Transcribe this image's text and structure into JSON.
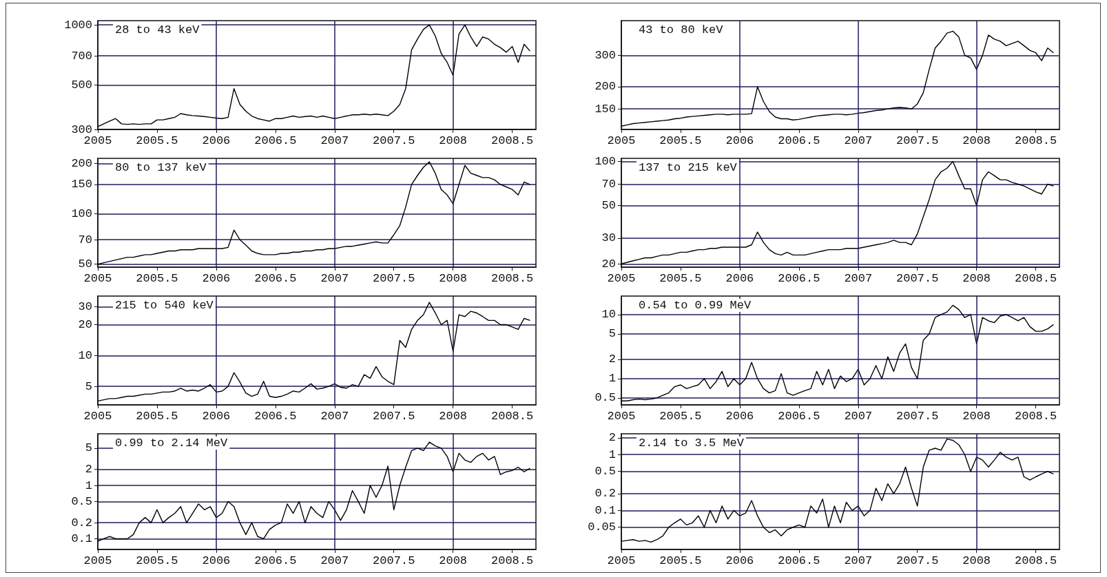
{
  "chart_data": [
    {
      "type": "line",
      "title": "28 to 43 keV",
      "log": "y",
      "grid": "y",
      "marker": "none",
      "line_style": "solid",
      "xlim": [
        2005,
        2008.7
      ],
      "xticks": [
        2005,
        2005.5,
        2006,
        2006.5,
        2007,
        2007.5,
        2008,
        2008.5
      ],
      "ylim": [
        300,
        1050
      ],
      "yticks": [
        300,
        500,
        700,
        1000
      ],
      "ref_lines": [
        {
          "axis": "x",
          "value": 2006,
          "color": "#1c1c5c"
        },
        {
          "axis": "x",
          "value": 2007,
          "color": "#1c1c5c"
        },
        {
          "axis": "x",
          "value": 2008,
          "color": "#1c1c5c"
        }
      ],
      "x": [
        2005,
        2005.05,
        2005.1,
        2005.15,
        2005.2,
        2005.25,
        2005.3,
        2005.35,
        2005.4,
        2005.45,
        2005.5,
        2005.55,
        2005.6,
        2005.65,
        2005.7,
        2005.75,
        2005.8,
        2005.85,
        2005.9,
        2005.95,
        2006,
        2006.05,
        2006.1,
        2006.15,
        2006.2,
        2006.25,
        2006.3,
        2006.35,
        2006.4,
        2006.45,
        2006.5,
        2006.55,
        2006.6,
        2006.65,
        2006.7,
        2006.75,
        2006.8,
        2006.85,
        2006.9,
        2006.95,
        2007,
        2007.05,
        2007.1,
        2007.15,
        2007.2,
        2007.25,
        2007.3,
        2007.35,
        2007.4,
        2007.45,
        2007.5,
        2007.55,
        2007.6,
        2007.65,
        2007.7,
        2007.75,
        2007.8,
        2007.85,
        2007.9,
        2007.95,
        2008,
        2008.05,
        2008.1,
        2008.15,
        2008.2,
        2008.25,
        2008.3,
        2008.35,
        2008.4,
        2008.45,
        2008.5,
        2008.55,
        2008.6,
        2008.65
      ],
      "series": [
        {
          "color": "#000000",
          "values": [
            310,
            320,
            330,
            340,
            320,
            318,
            320,
            318,
            320,
            320,
            335,
            335,
            340,
            345,
            360,
            355,
            352,
            350,
            348,
            345,
            342,
            340,
            345,
            480,
            400,
            370,
            350,
            340,
            335,
            330,
            340,
            340,
            345,
            350,
            345,
            348,
            350,
            345,
            350,
            345,
            340,
            345,
            350,
            355,
            355,
            358,
            355,
            358,
            355,
            352,
            370,
            400,
            480,
            750,
            850,
            950,
            1000,
            880,
            720,
            650,
            560,
            900,
            1000,
            870,
            780,
            870,
            850,
            800,
            770,
            730,
            780,
            650,
            800,
            740
          ]
        }
      ]
    },
    {
      "type": "line",
      "title": "43 to 80 keV",
      "log": "y",
      "grid": "y",
      "marker": "none",
      "line_style": "solid",
      "xlim": [
        2005,
        2008.7
      ],
      "xticks": [
        2005,
        2005.5,
        2006,
        2006.5,
        2007,
        2007.5,
        2008,
        2008.5
      ],
      "ylim": [
        115,
        470
      ],
      "yticks": [
        150,
        200,
        300
      ],
      "ref_lines": [
        {
          "axis": "x",
          "value": 2006,
          "color": "#1c1c5c"
        },
        {
          "axis": "x",
          "value": 2007,
          "color": "#1c1c5c"
        },
        {
          "axis": "x",
          "value": 2008,
          "color": "#1c1c5c"
        }
      ],
      "x": [
        2005,
        2005.05,
        2005.1,
        2005.15,
        2005.2,
        2005.25,
        2005.3,
        2005.35,
        2005.4,
        2005.45,
        2005.5,
        2005.55,
        2005.6,
        2005.65,
        2005.7,
        2005.75,
        2005.8,
        2005.85,
        2005.9,
        2005.95,
        2006,
        2006.05,
        2006.1,
        2006.15,
        2006.2,
        2006.25,
        2006.3,
        2006.35,
        2006.4,
        2006.45,
        2006.5,
        2006.55,
        2006.6,
        2006.65,
        2006.7,
        2006.75,
        2006.8,
        2006.85,
        2006.9,
        2006.95,
        2007,
        2007.05,
        2007.1,
        2007.15,
        2007.2,
        2007.25,
        2007.3,
        2007.35,
        2007.4,
        2007.45,
        2007.5,
        2007.55,
        2007.6,
        2007.65,
        2007.7,
        2007.75,
        2007.8,
        2007.85,
        2007.9,
        2007.95,
        2008,
        2008.05,
        2008.1,
        2008.15,
        2008.2,
        2008.25,
        2008.3,
        2008.35,
        2008.4,
        2008.45,
        2008.5,
        2008.55,
        2008.6,
        2008.65
      ],
      "series": [
        {
          "color": "#000000",
          "values": [
            120,
            122,
            124,
            125,
            126,
            127,
            128,
            129,
            130,
            132,
            133,
            135,
            136,
            137,
            138,
            139,
            140,
            140,
            139,
            140,
            140,
            140,
            141,
            200,
            165,
            145,
            135,
            132,
            132,
            130,
            131,
            133,
            135,
            137,
            138,
            139,
            140,
            140,
            139,
            140,
            142,
            143,
            145,
            147,
            148,
            150,
            152,
            153,
            152,
            150,
            160,
            185,
            250,
            330,
            360,
            400,
            410,
            380,
            300,
            290,
            250,
            300,
            390,
            370,
            360,
            340,
            350,
            360,
            340,
            320,
            310,
            280,
            330,
            310
          ]
        }
      ]
    },
    {
      "type": "line",
      "title": "80 to 137 keV",
      "log": "y",
      "grid": "y",
      "marker": "none",
      "line_style": "solid",
      "xlim": [
        2005,
        2008.7
      ],
      "xticks": [
        2005,
        2005.5,
        2006,
        2006.5,
        2007,
        2007.5,
        2008,
        2008.5
      ],
      "ylim": [
        48,
        215
      ],
      "yticks": [
        50,
        70,
        100,
        150,
        200
      ],
      "ref_lines": [
        {
          "axis": "x",
          "value": 2006,
          "color": "#1c1c5c"
        },
        {
          "axis": "x",
          "value": 2007,
          "color": "#1c1c5c"
        },
        {
          "axis": "x",
          "value": 2008,
          "color": "#1c1c5c"
        }
      ],
      "x": [
        2005,
        2005.05,
        2005.1,
        2005.15,
        2005.2,
        2005.25,
        2005.3,
        2005.35,
        2005.4,
        2005.45,
        2005.5,
        2005.55,
        2005.6,
        2005.65,
        2005.7,
        2005.75,
        2005.8,
        2005.85,
        2005.9,
        2005.95,
        2006,
        2006.05,
        2006.1,
        2006.15,
        2006.2,
        2006.25,
        2006.3,
        2006.35,
        2006.4,
        2006.45,
        2006.5,
        2006.55,
        2006.6,
        2006.65,
        2006.7,
        2006.75,
        2006.8,
        2006.85,
        2006.9,
        2006.95,
        2007,
        2007.05,
        2007.1,
        2007.15,
        2007.2,
        2007.25,
        2007.3,
        2007.35,
        2007.4,
        2007.45,
        2007.5,
        2007.55,
        2007.6,
        2007.65,
        2007.7,
        2007.75,
        2007.8,
        2007.85,
        2007.9,
        2007.95,
        2008,
        2008.05,
        2008.1,
        2008.15,
        2008.2,
        2008.25,
        2008.3,
        2008.35,
        2008.4,
        2008.45,
        2008.5,
        2008.55,
        2008.6,
        2008.65
      ],
      "series": [
        {
          "color": "#000000",
          "values": [
            50,
            51,
            52,
            53,
            54,
            55,
            55,
            56,
            57,
            57,
            58,
            59,
            60,
            60,
            61,
            61,
            61,
            62,
            62,
            62,
            62,
            62,
            63,
            80,
            70,
            65,
            60,
            58,
            57,
            57,
            57,
            58,
            58,
            59,
            59,
            60,
            60,
            61,
            61,
            62,
            62,
            63,
            64,
            64,
            65,
            66,
            67,
            68,
            67,
            67,
            75,
            85,
            110,
            150,
            170,
            190,
            205,
            175,
            140,
            130,
            115,
            150,
            195,
            175,
            170,
            165,
            165,
            160,
            150,
            145,
            140,
            130,
            155,
            150
          ]
        }
      ]
    },
    {
      "type": "line",
      "title": "137 to 215 keV",
      "log": "y",
      "grid": "y",
      "marker": "none",
      "line_style": "solid",
      "xlim": [
        2005,
        2008.7
      ],
      "xticks": [
        2005,
        2005.5,
        2006,
        2006.5,
        2007,
        2007.5,
        2008,
        2008.5
      ],
      "ylim": [
        19,
        105
      ],
      "yticks": [
        20,
        30,
        50,
        70,
        100
      ],
      "ref_lines": [
        {
          "axis": "x",
          "value": 2006,
          "color": "#1c1c5c"
        },
        {
          "axis": "x",
          "value": 2007,
          "color": "#1c1c5c"
        },
        {
          "axis": "x",
          "value": 2008,
          "color": "#1c1c5c"
        }
      ],
      "x": [
        2005,
        2005.05,
        2005.1,
        2005.15,
        2005.2,
        2005.25,
        2005.3,
        2005.35,
        2005.4,
        2005.45,
        2005.5,
        2005.55,
        2005.6,
        2005.65,
        2005.7,
        2005.75,
        2005.8,
        2005.85,
        2005.9,
        2005.95,
        2006,
        2006.05,
        2006.1,
        2006.15,
        2006.2,
        2006.25,
        2006.3,
        2006.35,
        2006.4,
        2006.45,
        2006.5,
        2006.55,
        2006.6,
        2006.65,
        2006.7,
        2006.75,
        2006.8,
        2006.85,
        2006.9,
        2006.95,
        2007,
        2007.05,
        2007.1,
        2007.15,
        2007.2,
        2007.25,
        2007.3,
        2007.35,
        2007.4,
        2007.45,
        2007.5,
        2007.55,
        2007.6,
        2007.65,
        2007.7,
        2007.75,
        2007.8,
        2007.85,
        2007.9,
        2007.95,
        2008,
        2008.05,
        2008.1,
        2008.15,
        2008.2,
        2008.25,
        2008.3,
        2008.35,
        2008.4,
        2008.45,
        2008.5,
        2008.55,
        2008.6,
        2008.65
      ],
      "series": [
        {
          "color": "#000000",
          "values": [
            20,
            20.5,
            21,
            21.5,
            22,
            22,
            22.5,
            23,
            23,
            23.5,
            24,
            24,
            24.5,
            25,
            25,
            25.5,
            25.5,
            26,
            26,
            26,
            26,
            26,
            27,
            33,
            28,
            25,
            23.5,
            23,
            24,
            23,
            23,
            23,
            23.5,
            24,
            24.5,
            25,
            25,
            25,
            25.5,
            25.5,
            25.5,
            26,
            26.5,
            27,
            27.5,
            28,
            29,
            28,
            28,
            27,
            32,
            42,
            55,
            75,
            85,
            90,
            100,
            80,
            65,
            65,
            50,
            75,
            85,
            80,
            75,
            75,
            72,
            70,
            68,
            65,
            62,
            60,
            70,
            68
          ]
        }
      ]
    },
    {
      "type": "line",
      "title": "215 to 540 keV",
      "log": "y",
      "grid": "y",
      "marker": "none",
      "line_style": "solid",
      "xlim": [
        2005,
        2008.7
      ],
      "xticks": [
        2005,
        2005.5,
        2006,
        2006.5,
        2007,
        2007.5,
        2008,
        2008.5
      ],
      "ylim": [
        3.3,
        38
      ],
      "yticks": [
        5,
        10,
        20,
        30
      ],
      "ref_lines": [
        {
          "axis": "x",
          "value": 2006,
          "color": "#1c1c5c"
        },
        {
          "axis": "x",
          "value": 2007,
          "color": "#1c1c5c"
        },
        {
          "axis": "x",
          "value": 2008,
          "color": "#1c1c5c"
        }
      ],
      "x": [
        2005,
        2005.05,
        2005.1,
        2005.15,
        2005.2,
        2005.25,
        2005.3,
        2005.35,
        2005.4,
        2005.45,
        2005.5,
        2005.55,
        2005.6,
        2005.65,
        2005.7,
        2005.75,
        2005.8,
        2005.85,
        2005.9,
        2005.95,
        2006,
        2006.05,
        2006.1,
        2006.15,
        2006.2,
        2006.25,
        2006.3,
        2006.35,
        2006.4,
        2006.45,
        2006.5,
        2006.55,
        2006.6,
        2006.65,
        2006.7,
        2006.75,
        2006.8,
        2006.85,
        2006.9,
        2006.95,
        2007,
        2007.05,
        2007.1,
        2007.15,
        2007.2,
        2007.25,
        2007.3,
        2007.35,
        2007.4,
        2007.45,
        2007.5,
        2007.55,
        2007.6,
        2007.65,
        2007.7,
        2007.75,
        2007.8,
        2007.85,
        2007.9,
        2007.95,
        2008,
        2008.05,
        2008.1,
        2008.15,
        2008.2,
        2008.25,
        2008.3,
        2008.35,
        2008.4,
        2008.45,
        2008.5,
        2008.55,
        2008.6,
        2008.65
      ],
      "series": [
        {
          "color": "#000000",
          "values": [
            3.6,
            3.7,
            3.8,
            3.8,
            3.9,
            4.0,
            4.0,
            4.1,
            4.2,
            4.2,
            4.3,
            4.4,
            4.4,
            4.5,
            4.8,
            4.5,
            4.6,
            4.5,
            4.8,
            5.2,
            4.4,
            4.5,
            5.0,
            6.8,
            5.5,
            4.3,
            4.0,
            4.2,
            5.6,
            4.0,
            3.9,
            4.0,
            4.2,
            4.5,
            4.4,
            4.8,
            5.3,
            4.7,
            4.8,
            5.0,
            5.3,
            4.9,
            4.8,
            5.2,
            5.0,
            6.5,
            6.0,
            7.8,
            6.2,
            5.6,
            5.2,
            14,
            12,
            18,
            22,
            25,
            33,
            26,
            20,
            22,
            11,
            25,
            24,
            27,
            26,
            24,
            22,
            22,
            20,
            20,
            19,
            18,
            23,
            22
          ]
        }
      ]
    },
    {
      "type": "line",
      "title": "0.54 to 0.99 MeV",
      "log": "y",
      "grid": "y",
      "marker": "none",
      "line_style": "solid",
      "xlim": [
        2005,
        2008.7
      ],
      "xticks": [
        2005,
        2005.5,
        2006,
        2006.5,
        2007,
        2007.5,
        2008,
        2008.5
      ],
      "ylim": [
        0.39,
        19.5
      ],
      "yticks": [
        0.5,
        1,
        2,
        5,
        10
      ],
      "ref_lines": [
        {
          "axis": "x",
          "value": 2006,
          "color": "#1c1c5c"
        },
        {
          "axis": "x",
          "value": 2007,
          "color": "#1c1c5c"
        },
        {
          "axis": "x",
          "value": 2008,
          "color": "#1c1c5c"
        }
      ],
      "x": [
        2005,
        2005.05,
        2005.1,
        2005.15,
        2005.2,
        2005.25,
        2005.3,
        2005.35,
        2005.4,
        2005.45,
        2005.5,
        2005.55,
        2005.6,
        2005.65,
        2005.7,
        2005.75,
        2005.8,
        2005.85,
        2005.9,
        2005.95,
        2006,
        2006.05,
        2006.1,
        2006.15,
        2006.2,
        2006.25,
        2006.3,
        2006.35,
        2006.4,
        2006.45,
        2006.5,
        2006.55,
        2006.6,
        2006.65,
        2006.7,
        2006.75,
        2006.8,
        2006.85,
        2006.9,
        2006.95,
        2007,
        2007.05,
        2007.1,
        2007.15,
        2007.2,
        2007.25,
        2007.3,
        2007.35,
        2007.4,
        2007.45,
        2007.5,
        2007.55,
        2007.6,
        2007.65,
        2007.7,
        2007.75,
        2007.8,
        2007.85,
        2007.9,
        2007.95,
        2008,
        2008.05,
        2008.1,
        2008.15,
        2008.2,
        2008.25,
        2008.3,
        2008.35,
        2008.4,
        2008.45,
        2008.5,
        2008.55,
        2008.6,
        2008.65
      ],
      "series": [
        {
          "color": "#000000",
          "values": [
            0.45,
            0.45,
            0.47,
            0.48,
            0.47,
            0.48,
            0.5,
            0.55,
            0.6,
            0.75,
            0.8,
            0.7,
            0.75,
            0.8,
            1.0,
            0.7,
            0.9,
            1.3,
            0.75,
            1.0,
            0.8,
            1.0,
            1.8,
            1.0,
            0.7,
            0.6,
            0.65,
            1.2,
            0.6,
            0.55,
            0.6,
            0.65,
            0.7,
            1.3,
            0.8,
            1.4,
            0.7,
            1.1,
            0.9,
            1.0,
            1.4,
            0.8,
            1.0,
            1.6,
            1.0,
            2.2,
            1.3,
            2.5,
            3.5,
            1.5,
            1.0,
            4.0,
            5.0,
            9.0,
            10,
            11,
            14,
            12,
            9.0,
            10,
            3.5,
            9.0,
            8.0,
            7.5,
            9.5,
            10,
            9.0,
            8.0,
            9.0,
            6.5,
            5.5,
            5.5,
            6.0,
            7.0
          ]
        }
      ]
    },
    {
      "type": "line",
      "title": "0.99 to 2.14 MeV",
      "log": "y",
      "grid": "y",
      "marker": "none",
      "line_style": "solid",
      "xlim": [
        2005,
        2008.7
      ],
      "xticks": [
        2005,
        2005.5,
        2006,
        2006.5,
        2007,
        2007.5,
        2008,
        2008.5
      ],
      "ylim": [
        0.063,
        9.3
      ],
      "yticks": [
        0.1,
        0.2,
        0.5,
        1,
        2,
        5
      ],
      "ref_lines": [
        {
          "axis": "x",
          "value": 2006,
          "color": "#1c1c5c"
        },
        {
          "axis": "x",
          "value": 2007,
          "color": "#1c1c5c"
        },
        {
          "axis": "x",
          "value": 2008,
          "color": "#1c1c5c"
        }
      ],
      "x": [
        2005,
        2005.05,
        2005.1,
        2005.15,
        2005.2,
        2005.25,
        2005.3,
        2005.35,
        2005.4,
        2005.45,
        2005.5,
        2005.55,
        2005.6,
        2005.65,
        2005.7,
        2005.75,
        2005.8,
        2005.85,
        2005.9,
        2005.95,
        2006,
        2006.05,
        2006.1,
        2006.15,
        2006.2,
        2006.25,
        2006.3,
        2006.35,
        2006.4,
        2006.45,
        2006.5,
        2006.55,
        2006.6,
        2006.65,
        2006.7,
        2006.75,
        2006.8,
        2006.85,
        2006.9,
        2006.95,
        2007,
        2007.05,
        2007.1,
        2007.15,
        2007.2,
        2007.25,
        2007.3,
        2007.35,
        2007.4,
        2007.45,
        2007.5,
        2007.55,
        2007.6,
        2007.65,
        2007.7,
        2007.75,
        2007.8,
        2007.85,
        2007.9,
        2007.95,
        2008,
        2008.05,
        2008.1,
        2008.15,
        2008.2,
        2008.25,
        2008.3,
        2008.35,
        2008.4,
        2008.45,
        2008.5,
        2008.55,
        2008.6,
        2008.65
      ],
      "series": [
        {
          "color": "#000000",
          "values": [
            0.09,
            0.1,
            0.11,
            0.1,
            0.1,
            0.1,
            0.12,
            0.2,
            0.25,
            0.2,
            0.35,
            0.2,
            0.25,
            0.3,
            0.4,
            0.2,
            0.3,
            0.45,
            0.35,
            0.4,
            0.25,
            0.3,
            0.5,
            0.4,
            0.2,
            0.12,
            0.2,
            0.11,
            0.1,
            0.15,
            0.18,
            0.2,
            0.45,
            0.3,
            0.5,
            0.2,
            0.4,
            0.3,
            0.25,
            0.5,
            0.35,
            0.22,
            0.35,
            0.8,
            0.5,
            0.3,
            1.0,
            0.6,
            1.0,
            2.3,
            0.35,
            1.0,
            2.2,
            4.5,
            5.0,
            4.5,
            6.5,
            5.5,
            5.0,
            3.5,
            1.8,
            4.0,
            3.0,
            2.7,
            3.5,
            4.0,
            3.0,
            3.5,
            1.6,
            1.8,
            1.9,
            2.2,
            1.8,
            2.1
          ]
        }
      ]
    },
    {
      "type": "line",
      "title": "2.14 to 3.5 MeV",
      "log": "y",
      "grid": "y",
      "marker": "none",
      "line_style": "solid",
      "xlim": [
        2005,
        2008.7
      ],
      "xticks": [
        2005,
        2005.5,
        2006,
        2006.5,
        2007,
        2007.5,
        2008,
        2008.5
      ],
      "ylim": [
        0.02,
        2.36
      ],
      "yticks": [
        0.05,
        0.1,
        0.2,
        0.5,
        1,
        2
      ],
      "ref_lines": [
        {
          "axis": "x",
          "value": 2006,
          "color": "#1c1c5c"
        },
        {
          "axis": "x",
          "value": 2007,
          "color": "#1c1c5c"
        },
        {
          "axis": "x",
          "value": 2008,
          "color": "#1c1c5c"
        }
      ],
      "x": [
        2005,
        2005.05,
        2005.1,
        2005.15,
        2005.2,
        2005.25,
        2005.3,
        2005.35,
        2005.4,
        2005.45,
        2005.5,
        2005.55,
        2005.6,
        2005.65,
        2005.7,
        2005.75,
        2005.8,
        2005.85,
        2005.9,
        2005.95,
        2006,
        2006.05,
        2006.1,
        2006.15,
        2006.2,
        2006.25,
        2006.3,
        2006.35,
        2006.4,
        2006.45,
        2006.5,
        2006.55,
        2006.6,
        2006.65,
        2006.7,
        2006.75,
        2006.8,
        2006.85,
        2006.9,
        2006.95,
        2007,
        2007.05,
        2007.1,
        2007.15,
        2007.2,
        2007.25,
        2007.3,
        2007.35,
        2007.4,
        2007.45,
        2007.5,
        2007.55,
        2007.6,
        2007.65,
        2007.7,
        2007.75,
        2007.8,
        2007.85,
        2007.9,
        2007.95,
        2008,
        2008.05,
        2008.1,
        2008.15,
        2008.2,
        2008.25,
        2008.3,
        2008.35,
        2008.4,
        2008.45,
        2008.5,
        2008.55,
        2008.6,
        2008.65
      ],
      "series": [
        {
          "color": "#000000",
          "values": [
            0.028,
            0.029,
            0.03,
            0.028,
            0.029,
            0.027,
            0.03,
            0.035,
            0.05,
            0.06,
            0.07,
            0.055,
            0.06,
            0.08,
            0.05,
            0.1,
            0.06,
            0.12,
            0.07,
            0.1,
            0.08,
            0.09,
            0.15,
            0.08,
            0.05,
            0.04,
            0.045,
            0.035,
            0.045,
            0.05,
            0.055,
            0.05,
            0.12,
            0.09,
            0.16,
            0.05,
            0.12,
            0.06,
            0.14,
            0.1,
            0.12,
            0.08,
            0.1,
            0.25,
            0.15,
            0.3,
            0.2,
            0.3,
            0.6,
            0.25,
            0.12,
            0.6,
            1.2,
            1.3,
            1.2,
            1.9,
            1.8,
            1.5,
            1.0,
            0.5,
            0.9,
            0.8,
            0.6,
            0.8,
            1.1,
            0.9,
            0.8,
            0.9,
            0.4,
            0.35,
            0.4,
            0.45,
            0.5,
            0.45
          ]
        }
      ]
    }
  ]
}
